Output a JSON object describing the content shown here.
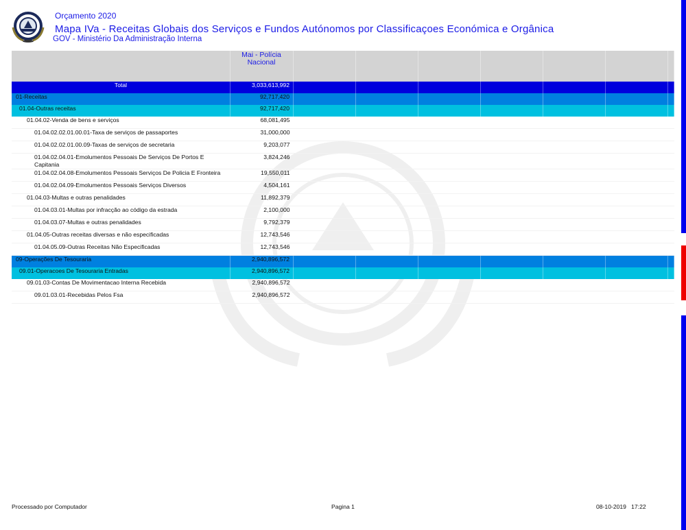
{
  "header": {
    "subtitle": "Orçamento 2020",
    "title": "Mapa IVa - Receitas Globais dos Serviços e Fundos Autónomos por Classificaçoes Económica e Orgânica",
    "ministry": "GOV - Ministério Da Administração Interna"
  },
  "table": {
    "column_header": "Mai - Polícia Nacional",
    "rows": [
      {
        "label": "Total",
        "value": "3,033,613,992",
        "level": "tot"
      },
      {
        "label": "01-Receitas",
        "value": "92,717,420",
        "level": "l1"
      },
      {
        "label": "01.04-Outras receitas",
        "value": "92,717,420",
        "level": "l2"
      },
      {
        "label": "01.04.02-Venda de bens e serviços",
        "value": "68,081,495",
        "level": "3"
      },
      {
        "label": "01.04.02.02.01.00.01-Taxa de serviços de passaportes",
        "value": "31,000,000",
        "level": "4"
      },
      {
        "label": "01.04.02.02.01.00.09-Taxas de serviços de secretaria",
        "value": "9,203,077",
        "level": "4"
      },
      {
        "label": "01.04.02.04.01-Emolumentos Pessoais De Serviços De Portos E Capitania",
        "value": "3,824,246",
        "level": "4"
      },
      {
        "label": "01.04.02.04.08-Emolumentos Pessoais Serviços De Policia E Fronteira",
        "value": "19,550,011",
        "level": "4"
      },
      {
        "label": "01.04.02.04.09-Emolumentos Pessoais Serviços Diversos",
        "value": "4,504,161",
        "level": "4"
      },
      {
        "label": "01.04.03-Multas e outras penalidades",
        "value": "11,892,379",
        "level": "3"
      },
      {
        "label": "01.04.03.01-Multas por infracção ao código da estrada",
        "value": "2,100,000",
        "level": "4"
      },
      {
        "label": "01.04.03.07-Multas e outras penalidades",
        "value": "9,792,379",
        "level": "4"
      },
      {
        "label": "01.04.05-Outras receitas diversas e não especificadas",
        "value": "12,743,546",
        "level": "3"
      },
      {
        "label": "01.04.05.09-Outras Receitas  Não Especificadas",
        "value": "12,743,546",
        "level": "4"
      },
      {
        "label": "09-Operações De Tesouraria",
        "value": "2,940,896,572",
        "level": "l1"
      },
      {
        "label": "09.01-Operacoes De Tesouraria Entradas",
        "value": "2,940,896,572",
        "level": "l2"
      },
      {
        "label": "09.01.03-Contas De Movimentacao Interna Recebida",
        "value": "2,940,896,572",
        "level": "3"
      },
      {
        "label": "09.01.03.01-Recebidas Pelos Fsa",
        "value": "2,940,896,572",
        "level": "4"
      }
    ]
  },
  "footer": {
    "left": "Processado por Computador",
    "center": "Pagina 1",
    "right": "08-10-2019   17:22"
  },
  "colors": {
    "total": "#0000dd",
    "level1": "#0080e0",
    "level2": "#00c0e0",
    "header_text": "#1a1ae6"
  }
}
